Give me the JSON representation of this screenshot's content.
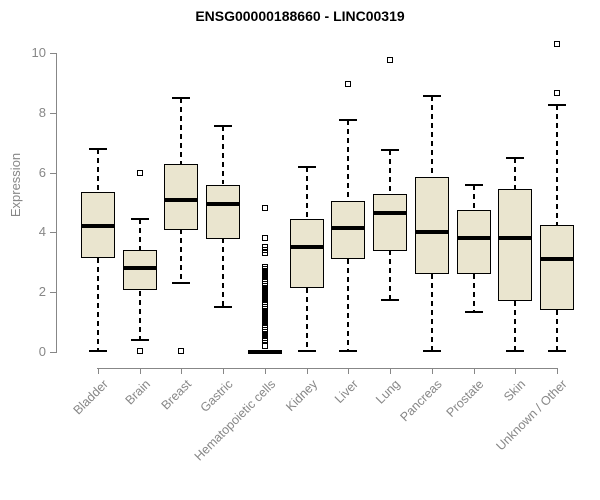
{
  "figure": {
    "title": "ENSG00000188660 - LINC00319",
    "ylabel": "Expression"
  },
  "chart_data": {
    "type": "boxplot",
    "title": "ENSG00000188660 - LINC00319",
    "xlabel": "",
    "ylabel": "Expression",
    "ylim": [
      0,
      10
    ],
    "yticks": [
      0,
      2,
      4,
      6,
      8,
      10
    ],
    "grid": false,
    "legend": false,
    "x_label_rotation_deg": 45,
    "colors": {
      "box_fill": "#EAE5CF",
      "box_border": "#000000",
      "median": "#000000",
      "whisker": "#000000",
      "outlier": "#000000",
      "axis": "#878787",
      "tick_label": "#878787",
      "title": "#000000",
      "background": "#ffffff"
    },
    "categories": [
      "Bladder",
      "Brain",
      "Breast",
      "Gastric",
      "Hematopoietic cells",
      "Kidney",
      "Liver",
      "Lung",
      "Pancreas",
      "Prostate",
      "Skin",
      "Unknown / Other"
    ],
    "groups": [
      {
        "label": "Bladder",
        "whisker_low": 0.05,
        "q1": 3.15,
        "median": 4.2,
        "q3": 5.35,
        "whisker_high": 6.8,
        "outliers": []
      },
      {
        "label": "Brain",
        "whisker_low": 0.4,
        "q1": 2.05,
        "median": 2.8,
        "q3": 3.4,
        "whisker_high": 4.45,
        "outliers": [
          6.0,
          0.05
        ]
      },
      {
        "label": "Breast",
        "whisker_low": 2.3,
        "q1": 4.1,
        "median": 5.1,
        "q3": 6.3,
        "whisker_high": 8.5,
        "outliers": [
          0.05
        ]
      },
      {
        "label": "Gastric",
        "whisker_low": 1.5,
        "q1": 3.8,
        "median": 4.95,
        "q3": 5.6,
        "whisker_high": 7.55,
        "outliers": []
      },
      {
        "label": "Hematopoietic cells",
        "whisker_low": 0,
        "q1": 0,
        "median": 0,
        "q3": 0,
        "whisker_high": 0,
        "outliers": [
          4.8,
          3.8,
          3.5,
          3.4,
          3.3,
          2.85,
          2.78,
          2.71,
          2.64,
          2.57,
          2.5,
          2.43,
          2.36,
          2.29,
          2.22,
          2.15,
          2.08,
          2.01,
          1.94,
          1.87,
          1.8,
          1.73,
          1.66,
          1.59,
          1.52,
          1.45,
          1.38,
          1.31,
          1.24,
          1.17,
          1.1,
          1.03,
          0.96,
          0.89,
          0.82,
          0.75,
          0.68,
          0.61,
          0.54,
          0.47,
          0.4,
          0.2
        ]
      },
      {
        "label": "Kidney",
        "whisker_low": 0.05,
        "q1": 2.15,
        "median": 3.5,
        "q3": 4.45,
        "whisker_high": 6.2,
        "outliers": []
      },
      {
        "label": "Liver",
        "whisker_low": 0.05,
        "q1": 3.1,
        "median": 4.15,
        "q3": 5.05,
        "whisker_high": 7.75,
        "outliers": [
          8.95
        ]
      },
      {
        "label": "Lung",
        "whisker_low": 1.75,
        "q1": 3.4,
        "median": 4.65,
        "q3": 5.3,
        "whisker_high": 6.75,
        "outliers": [
          9.75
        ]
      },
      {
        "label": "Pancreas",
        "whisker_low": 0.05,
        "q1": 2.6,
        "median": 4.0,
        "q3": 5.85,
        "whisker_high": 8.55,
        "outliers": []
      },
      {
        "label": "Prostate",
        "whisker_low": 1.35,
        "q1": 2.6,
        "median": 3.8,
        "q3": 4.75,
        "whisker_high": 5.6,
        "outliers": []
      },
      {
        "label": "Skin",
        "whisker_low": 0.05,
        "q1": 1.7,
        "median": 3.8,
        "q3": 5.45,
        "whisker_high": 6.5,
        "outliers": []
      },
      {
        "label": "Unknown / Other",
        "whisker_low": 0.05,
        "q1": 1.4,
        "median": 3.1,
        "q3": 4.25,
        "whisker_high": 8.25,
        "outliers": [
          10.3,
          8.65
        ]
      }
    ]
  }
}
